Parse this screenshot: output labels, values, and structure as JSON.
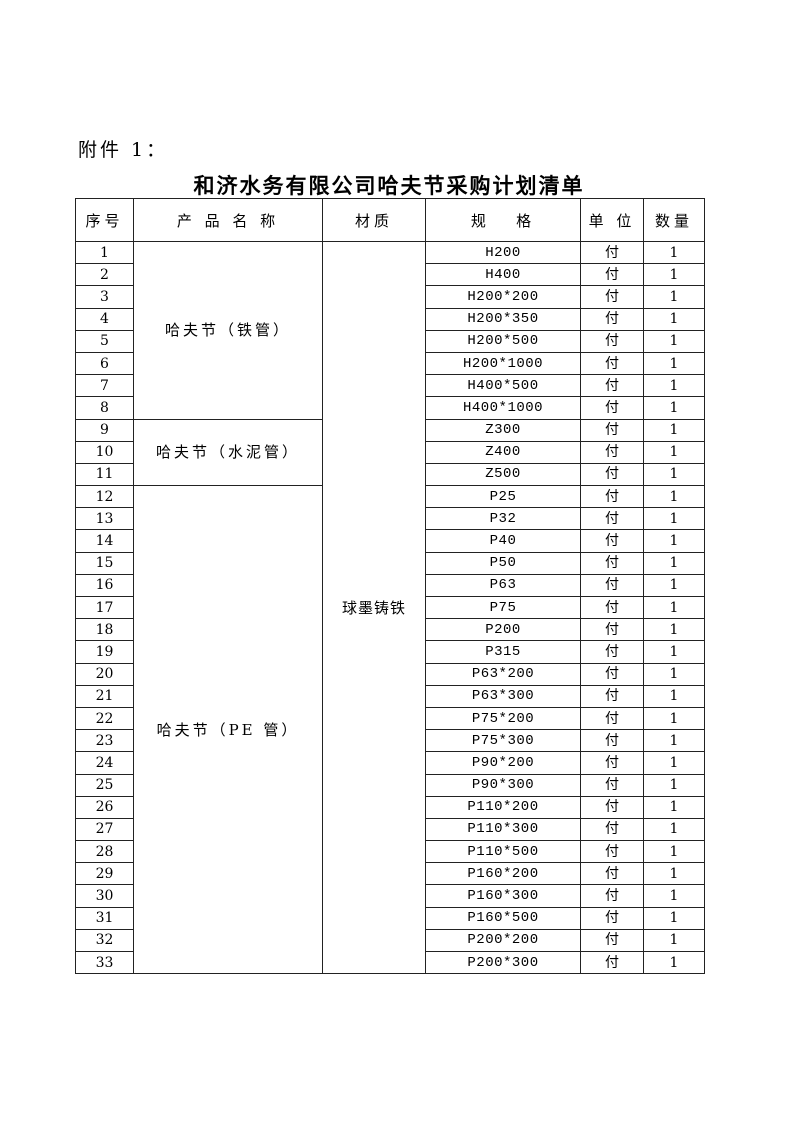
{
  "attachment_label": "附件 1：",
  "title": "和济水务有限公司哈夫节采购计划清单",
  "headers": [
    "序号",
    "产 品 名 称",
    "材质",
    "规   格",
    "单 位",
    "数量"
  ],
  "material": "球墨铸铁",
  "product_groups": [
    {
      "name": "哈夫节（铁管）",
      "start": 1,
      "count": 8
    },
    {
      "name": "哈夫节（水泥管）",
      "start": 9,
      "count": 3
    },
    {
      "name": "哈夫节（PE 管）",
      "start": 12,
      "count": 22
    }
  ],
  "rows": [
    {
      "no": "1",
      "spec": "H200",
      "unit": "付",
      "qty": "1"
    },
    {
      "no": "2",
      "spec": "H400",
      "unit": "付",
      "qty": "1"
    },
    {
      "no": "3",
      "spec": "H200*200",
      "unit": "付",
      "qty": "1"
    },
    {
      "no": "4",
      "spec": "H200*350",
      "unit": "付",
      "qty": "1"
    },
    {
      "no": "5",
      "spec": "H200*500",
      "unit": "付",
      "qty": "1"
    },
    {
      "no": "6",
      "spec": "H200*1000",
      "unit": "付",
      "qty": "1"
    },
    {
      "no": "7",
      "spec": "H400*500",
      "unit": "付",
      "qty": "1"
    },
    {
      "no": "8",
      "spec": "H400*1000",
      "unit": "付",
      "qty": "1"
    },
    {
      "no": "9",
      "spec": "Z300",
      "unit": "付",
      "qty": "1"
    },
    {
      "no": "10",
      "spec": "Z400",
      "unit": "付",
      "qty": "1"
    },
    {
      "no": "11",
      "spec": "Z500",
      "unit": "付",
      "qty": "1"
    },
    {
      "no": "12",
      "spec": "P25",
      "unit": "付",
      "qty": "1"
    },
    {
      "no": "13",
      "spec": "P32",
      "unit": "付",
      "qty": "1"
    },
    {
      "no": "14",
      "spec": "P40",
      "unit": "付",
      "qty": "1"
    },
    {
      "no": "15",
      "spec": "P50",
      "unit": "付",
      "qty": "1"
    },
    {
      "no": "16",
      "spec": "P63",
      "unit": "付",
      "qty": "1"
    },
    {
      "no": "17",
      "spec": "P75",
      "unit": "付",
      "qty": "1"
    },
    {
      "no": "18",
      "spec": "P200",
      "unit": "付",
      "qty": "1"
    },
    {
      "no": "19",
      "spec": "P315",
      "unit": "付",
      "qty": "1"
    },
    {
      "no": "20",
      "spec": "P63*200",
      "unit": "付",
      "qty": "1"
    },
    {
      "no": "21",
      "spec": "P63*300",
      "unit": "付",
      "qty": "1"
    },
    {
      "no": "22",
      "spec": "P75*200",
      "unit": "付",
      "qty": "1"
    },
    {
      "no": "23",
      "spec": "P75*300",
      "unit": "付",
      "qty": "1"
    },
    {
      "no": "24",
      "spec": "P90*200",
      "unit": "付",
      "qty": "1"
    },
    {
      "no": "25",
      "spec": "P90*300",
      "unit": "付",
      "qty": "1"
    },
    {
      "no": "26",
      "spec": "P110*200",
      "unit": "付",
      "qty": "1"
    },
    {
      "no": "27",
      "spec": "P110*300",
      "unit": "付",
      "qty": "1"
    },
    {
      "no": "28",
      "spec": "P110*500",
      "unit": "付",
      "qty": "1"
    },
    {
      "no": "29",
      "spec": "P160*200",
      "unit": "付",
      "qty": "1"
    },
    {
      "no": "30",
      "spec": "P160*300",
      "unit": "付",
      "qty": "1"
    },
    {
      "no": "31",
      "spec": "P160*500",
      "unit": "付",
      "qty": "1"
    },
    {
      "no": "32",
      "spec": "P200*200",
      "unit": "付",
      "qty": "1"
    },
    {
      "no": "33",
      "spec": "P200*300",
      "unit": "付",
      "qty": "1"
    }
  ]
}
